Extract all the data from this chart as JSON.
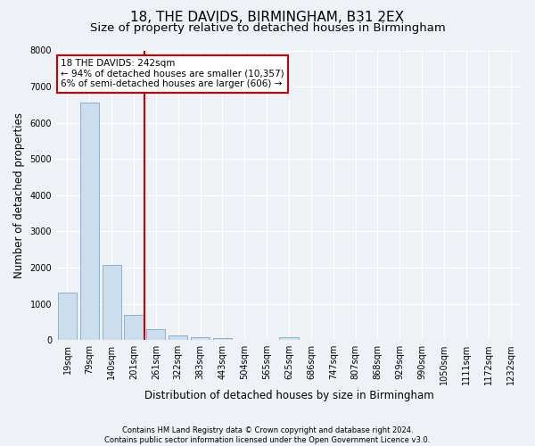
{
  "title": "18, THE DAVIDS, BIRMINGHAM, B31 2EX",
  "subtitle": "Size of property relative to detached houses in Birmingham",
  "xlabel": "Distribution of detached houses by size in Birmingham",
  "ylabel": "Number of detached properties",
  "footer_line1": "Contains HM Land Registry data © Crown copyright and database right 2024.",
  "footer_line2": "Contains public sector information licensed under the Open Government Licence v3.0.",
  "bin_labels": [
    "19sqm",
    "79sqm",
    "140sqm",
    "201sqm",
    "261sqm",
    "322sqm",
    "383sqm",
    "443sqm",
    "504sqm",
    "565sqm",
    "625sqm",
    "686sqm",
    "747sqm",
    "807sqm",
    "868sqm",
    "929sqm",
    "990sqm",
    "1050sqm",
    "1111sqm",
    "1172sqm",
    "1232sqm"
  ],
  "bar_values": [
    1300,
    6550,
    2080,
    700,
    290,
    120,
    70,
    60,
    0,
    0,
    80,
    0,
    0,
    0,
    0,
    0,
    0,
    0,
    0,
    0,
    0
  ],
  "bar_color": "#ccdded",
  "bar_edge_color": "#7aaacc",
  "vline_pos": 3.5,
  "vline_color": "#cc0000",
  "annotation_text_line1": "18 THE DAVIDS: 242sqm",
  "annotation_text_line2": "← 94% of detached houses are smaller (10,357)",
  "annotation_text_line3": "6% of semi-detached houses are larger (606) →",
  "annotation_box_color": "#cc0000",
  "ylim": [
    0,
    8000
  ],
  "yticks": [
    0,
    1000,
    2000,
    3000,
    4000,
    5000,
    6000,
    7000,
    8000
  ],
  "bg_color": "#eef2f7",
  "grid_color": "#ffffff",
  "title_fontsize": 11,
  "subtitle_fontsize": 9.5,
  "axis_label_fontsize": 8.5,
  "tick_fontsize": 7,
  "footer_fontsize": 6,
  "annotation_fontsize": 7.5
}
